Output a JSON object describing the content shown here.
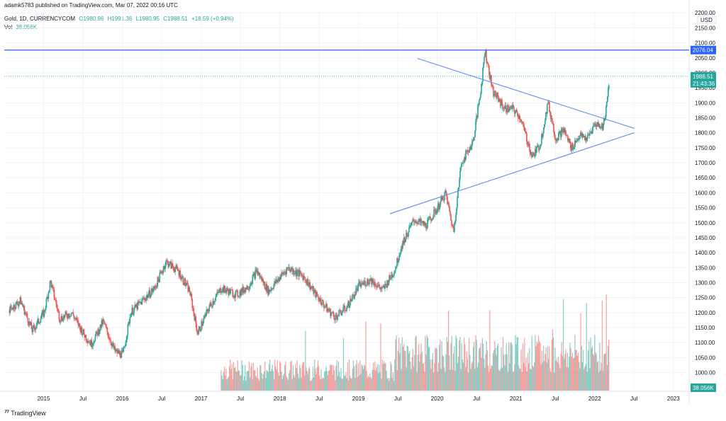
{
  "header": {
    "published_by": "adamk5783 published on TradingView.com, Mar 07, 2022 00:16 UTC",
    "symbol": "Gold, 1D, CURRENCYCOM",
    "open": "O1980.96",
    "high": "H1991.36",
    "low": "L1980.95",
    "close": "C1988.51",
    "change": "+18.59 (+0.94%)",
    "vol_label": "Vol",
    "vol_value": "38.056K"
  },
  "brand": {
    "logo_text": "TradingView"
  },
  "colors": {
    "up": "#26a69a",
    "down": "#ef5350",
    "hline": "#2962ff",
    "trend": "#5b8def",
    "price_badge": "#26a69a"
  },
  "chart_data": {
    "type": "candlestick",
    "currency": "USD",
    "x_ticks": [
      "2015",
      "Jul",
      "2016",
      "Jul",
      "2017",
      "Jul",
      "2018",
      "Jul",
      "2019",
      "Jul",
      "2020",
      "Jul",
      "2021",
      "Jul",
      "2022",
      "Jul",
      "2023"
    ],
    "y_ticks": [
      "2200.00",
      "2150.00",
      "2100.00",
      "2050.00",
      "2000.00",
      "1950.00",
      "1900.00",
      "1850.00",
      "1800.00",
      "1750.00",
      "1700.00",
      "1650.00",
      "1600.00",
      "1550.00",
      "1500.00",
      "1450.00",
      "1400.00",
      "1350.00",
      "1300.00",
      "1250.00",
      "1200.00",
      "1150.00",
      "1100.00",
      "1050.00",
      "1000.00"
    ],
    "ylim": [
      940,
      2210
    ],
    "xlim": [
      2014.5,
      2023.2
    ],
    "horizontal_line": {
      "value": 2076.04,
      "label": "2076.04"
    },
    "last_price": {
      "value": 1988.51,
      "label": "1988.51",
      "countdown": "21:43:36"
    },
    "volume_label": "38.056K",
    "trendlines": [
      {
        "name": "upper",
        "from": [
          2019.75,
          2048
        ],
        "to": [
          2022.5,
          1815
        ]
      },
      {
        "name": "lower",
        "from": [
          2019.4,
          1530
        ],
        "to": [
          2022.5,
          1800
        ]
      }
    ],
    "price_path": [
      [
        2014.56,
        1210
      ],
      [
        2014.7,
        1240
      ],
      [
        2014.85,
        1140
      ],
      [
        2015.0,
        1200
      ],
      [
        2015.08,
        1305
      ],
      [
        2015.2,
        1180
      ],
      [
        2015.35,
        1200
      ],
      [
        2015.5,
        1130
      ],
      [
        2015.6,
        1095
      ],
      [
        2015.75,
        1170
      ],
      [
        2015.9,
        1070
      ],
      [
        2016.0,
        1060
      ],
      [
        2016.1,
        1200
      ],
      [
        2016.25,
        1240
      ],
      [
        2016.4,
        1280
      ],
      [
        2016.55,
        1370
      ],
      [
        2016.7,
        1340
      ],
      [
        2016.85,
        1270
      ],
      [
        2016.95,
        1130
      ],
      [
        2017.1,
        1220
      ],
      [
        2017.25,
        1280
      ],
      [
        2017.45,
        1260
      ],
      [
        2017.6,
        1290
      ],
      [
        2017.7,
        1340
      ],
      [
        2017.85,
        1270
      ],
      [
        2018.0,
        1320
      ],
      [
        2018.1,
        1350
      ],
      [
        2018.3,
        1320
      ],
      [
        2018.45,
        1260
      ],
      [
        2018.6,
        1210
      ],
      [
        2018.7,
        1185
      ],
      [
        2018.85,
        1220
      ],
      [
        2019.0,
        1290
      ],
      [
        2019.15,
        1310
      ],
      [
        2019.3,
        1275
      ],
      [
        2019.45,
        1340
      ],
      [
        2019.55,
        1430
      ],
      [
        2019.7,
        1510
      ],
      [
        2019.85,
        1490
      ],
      [
        2020.0,
        1550
      ],
      [
        2020.1,
        1600
      ],
      [
        2020.2,
        1470
      ],
      [
        2020.3,
        1700
      ],
      [
        2020.45,
        1770
      ],
      [
        2020.55,
        1950
      ],
      [
        2020.6,
        2076
      ],
      [
        2020.7,
        1940
      ],
      [
        2020.85,
        1880
      ],
      [
        2020.95,
        1880
      ],
      [
        2021.05,
        1850
      ],
      [
        2021.2,
        1720
      ],
      [
        2021.3,
        1760
      ],
      [
        2021.4,
        1900
      ],
      [
        2021.5,
        1780
      ],
      [
        2021.6,
        1810
      ],
      [
        2021.7,
        1750
      ],
      [
        2021.8,
        1790
      ],
      [
        2021.9,
        1780
      ],
      [
        2022.0,
        1830
      ],
      [
        2022.1,
        1820
      ],
      [
        2022.15,
        1900
      ],
      [
        2022.18,
        1988.51
      ]
    ]
  }
}
